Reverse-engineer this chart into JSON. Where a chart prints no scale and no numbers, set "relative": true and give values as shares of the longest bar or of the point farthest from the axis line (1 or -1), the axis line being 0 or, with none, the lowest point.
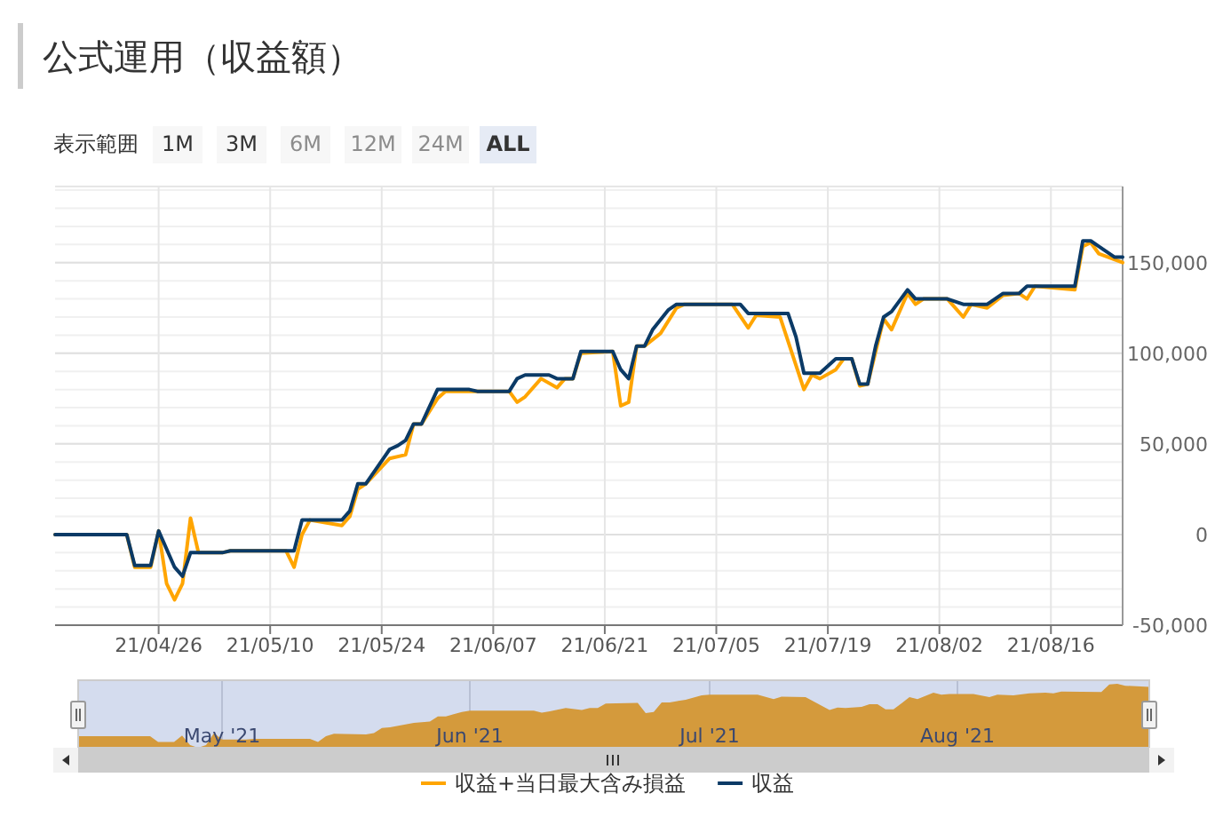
{
  "chart_data": [
    {
      "type": "line",
      "title": "公式運用（収益額）",
      "annotations": [
        "表示範囲",
        "1M",
        "3M",
        "6M",
        "12M",
        "24M",
        "ALL"
      ],
      "x": [
        "2021-04-13",
        "2021-04-22",
        "2021-04-23",
        "2021-04-25",
        "2021-04-26",
        "2021-04-28",
        "2021-04-29",
        "2021-04-30",
        "2021-05-04",
        "2021-05-05",
        "2021-05-13",
        "2021-05-14",
        "2021-05-19",
        "2021-05-20",
        "2021-05-21",
        "2021-05-22",
        "2021-05-25",
        "2021-05-26",
        "2021-05-27",
        "2021-05-28",
        "2021-05-29",
        "2021-05-31",
        "2021-06-04",
        "2021-06-05",
        "2021-06-09",
        "2021-06-10",
        "2021-06-11",
        "2021-06-14",
        "2021-06-15",
        "2021-06-17",
        "2021-06-18",
        "2021-06-22",
        "2021-06-23",
        "2021-06-24",
        "2021-06-25",
        "2021-06-26",
        "2021-06-27",
        "2021-06-29",
        "2021-06-30",
        "2021-07-08",
        "2021-07-09",
        "2021-07-14",
        "2021-07-15",
        "2021-07-16",
        "2021-07-18",
        "2021-07-20",
        "2021-07-22",
        "2021-07-23",
        "2021-07-24",
        "2021-07-25",
        "2021-07-26",
        "2021-07-27",
        "2021-07-29",
        "2021-07-30",
        "2021-08-03",
        "2021-08-05",
        "2021-08-08",
        "2021-08-10",
        "2021-08-12",
        "2021-08-13",
        "2021-08-19",
        "2021-08-20",
        "2021-08-21",
        "2021-08-22",
        "2021-08-24",
        "2021-08-25"
      ],
      "series": [
        {
          "name": "収益+当日最大含み損益",
          "color": "#ffa500",
          "x": [
            "2021-04-13",
            "2021-04-22",
            "2021-04-23",
            "2021-04-25",
            "2021-04-26",
            "2021-04-27",
            "2021-04-28",
            "2021-04-29",
            "2021-04-30",
            "2021-05-01",
            "2021-05-04",
            "2021-05-05",
            "2021-05-12",
            "2021-05-13",
            "2021-05-14",
            "2021-05-15",
            "2021-05-19",
            "2021-05-20",
            "2021-05-21",
            "2021-05-22",
            "2021-05-25",
            "2021-05-27",
            "2021-05-28",
            "2021-05-29",
            "2021-05-31",
            "2021-06-01",
            "2021-06-09",
            "2021-06-10",
            "2021-06-11",
            "2021-06-13",
            "2021-06-15",
            "2021-06-16",
            "2021-06-17",
            "2021-06-18",
            "2021-06-22",
            "2021-06-23",
            "2021-06-24",
            "2021-06-25",
            "2021-06-26",
            "2021-06-28",
            "2021-06-30",
            "2021-07-01",
            "2021-07-07",
            "2021-07-09",
            "2021-07-10",
            "2021-07-13",
            "2021-07-16",
            "2021-07-17",
            "2021-07-18",
            "2021-07-20",
            "2021-07-21",
            "2021-07-22",
            "2021-07-23",
            "2021-07-24",
            "2021-07-26",
            "2021-07-27",
            "2021-07-29",
            "2021-07-30",
            "2021-07-31",
            "2021-08-03",
            "2021-08-05",
            "2021-08-06",
            "2021-08-08",
            "2021-08-10",
            "2021-08-12",
            "2021-08-13",
            "2021-08-14",
            "2021-08-19",
            "2021-08-20",
            "2021-08-21",
            "2021-08-22",
            "2021-08-25"
          ],
          "values": [
            0,
            0,
            -18000,
            -18000,
            2000,
            -27000,
            -36000,
            -27000,
            9000,
            -10000,
            -10000,
            -9000,
            -9000,
            -18000,
            0,
            8000,
            5000,
            10000,
            25000,
            28000,
            42000,
            44000,
            61000,
            61000,
            75000,
            79000,
            79000,
            73000,
            76000,
            86000,
            81000,
            86000,
            86000,
            100000,
            101000,
            71000,
            73000,
            104000,
            104000,
            111000,
            125000,
            127000,
            127000,
            114000,
            121000,
            120000,
            80000,
            88000,
            86000,
            91000,
            97000,
            97000,
            82000,
            83000,
            119000,
            113000,
            133000,
            127000,
            130000,
            130000,
            120000,
            127000,
            125000,
            132000,
            133000,
            130000,
            137000,
            135000,
            159000,
            161000,
            155000,
            150000
          ]
        },
        {
          "name": "収益",
          "color": "#0b3a66",
          "values": [
            0,
            0,
            -17000,
            -17000,
            2000,
            -18000,
            -23000,
            -10000,
            -10000,
            -9000,
            -9000,
            8000,
            8000,
            13000,
            28000,
            28000,
            47000,
            49000,
            52000,
            61000,
            61000,
            80000,
            80000,
            79000,
            79000,
            86000,
            88000,
            88000,
            86000,
            86000,
            101000,
            101000,
            91000,
            86000,
            104000,
            104000,
            113000,
            124000,
            127000,
            127000,
            122000,
            122000,
            109000,
            89000,
            89000,
            97000,
            97000,
            83000,
            83000,
            104000,
            120000,
            123000,
            135000,
            130000,
            130000,
            127000,
            127000,
            133000,
            133000,
            137000,
            137000,
            162000,
            162000,
            159000,
            153000,
            153000
          ]
        }
      ],
      "xlim": [
        "2021-04-13",
        "2021-08-25"
      ],
      "xticks": [
        {
          "value": "2021-04-26",
          "label": "21/04/26"
        },
        {
          "value": "2021-05-10",
          "label": "21/05/10"
        },
        {
          "value": "2021-05-24",
          "label": "21/05/24"
        },
        {
          "value": "2021-06-07",
          "label": "21/06/07"
        },
        {
          "value": "2021-06-21",
          "label": "21/06/21"
        },
        {
          "value": "2021-07-05",
          "label": "21/07/05"
        },
        {
          "value": "2021-07-19",
          "label": "21/07/19"
        },
        {
          "value": "2021-08-02",
          "label": "21/08/02"
        },
        {
          "value": "2021-08-16",
          "label": "21/08/16"
        }
      ],
      "ylim": [
        -50000,
        192000
      ],
      "yticks": [
        {
          "value": -50000,
          "label": "-50,000"
        },
        0,
        {
          "value": 50000,
          "label": "50,000"
        },
        {
          "value": 100000,
          "label": "100,000"
        },
        {
          "value": 150000,
          "label": "150,000"
        }
      ],
      "grid": true,
      "legend": "bottom",
      "line_style": "solid",
      "marker": "none"
    },
    {
      "type": "area",
      "relative": true,
      "color": "#d49a3c",
      "x": [
        "2021-04-13",
        "2021-04-22",
        "2021-04-23",
        "2021-04-25",
        "2021-04-26",
        "2021-04-27",
        "2021-04-28",
        "2021-04-29",
        "2021-04-30",
        "2021-05-01",
        "2021-05-04",
        "2021-05-05",
        "2021-05-12",
        "2021-05-13",
        "2021-05-14",
        "2021-05-15",
        "2021-05-19",
        "2021-05-20",
        "2021-05-21",
        "2021-05-22",
        "2021-05-25",
        "2021-05-27",
        "2021-05-28",
        "2021-05-29",
        "2021-05-31",
        "2021-06-01",
        "2021-06-09",
        "2021-06-10",
        "2021-06-11",
        "2021-06-13",
        "2021-06-15",
        "2021-06-16",
        "2021-06-17",
        "2021-06-18",
        "2021-06-22",
        "2021-06-23",
        "2021-06-24",
        "2021-06-25",
        "2021-06-26",
        "2021-06-28",
        "2021-06-30",
        "2021-07-01",
        "2021-07-07",
        "2021-07-09",
        "2021-07-10",
        "2021-07-13",
        "2021-07-16",
        "2021-07-17",
        "2021-07-18",
        "2021-07-20",
        "2021-07-21",
        "2021-07-22",
        "2021-07-23",
        "2021-07-24",
        "2021-07-26",
        "2021-07-27",
        "2021-07-29",
        "2021-07-30",
        "2021-07-31",
        "2021-08-03",
        "2021-08-05",
        "2021-08-06",
        "2021-08-08",
        "2021-08-10",
        "2021-08-12",
        "2021-08-13",
        "2021-08-14",
        "2021-08-19",
        "2021-08-20",
        "2021-08-21",
        "2021-08-22",
        "2021-08-25"
      ],
      "values": [
        0.18,
        0.18,
        0.09,
        0.09,
        0.19,
        0.04,
        0,
        0.04,
        0.23,
        0.13,
        0.13,
        0.14,
        0.14,
        0.09,
        0.18,
        0.22,
        0.21,
        0.23,
        0.31,
        0.32,
        0.39,
        0.41,
        0.49,
        0.49,
        0.56,
        0.58,
        0.58,
        0.55,
        0.57,
        0.62,
        0.59,
        0.62,
        0.62,
        0.69,
        0.7,
        0.54,
        0.56,
        0.71,
        0.71,
        0.75,
        0.82,
        0.83,
        0.83,
        0.76,
        0.8,
        0.79,
        0.59,
        0.63,
        0.62,
        0.64,
        0.68,
        0.68,
        0.6,
        0.6,
        0.79,
        0.76,
        0.86,
        0.83,
        0.84,
        0.84,
        0.79,
        0.83,
        0.82,
        0.85,
        0.86,
        0.85,
        0.88,
        0.87,
        0.99,
        1,
        0.97,
        0.95
      ],
      "xlim": [
        "2021-04-13",
        "2021-08-25"
      ],
      "xticks": [
        {
          "value": "2021-05-01",
          "label": "May '21"
        },
        {
          "value": "2021-06-01",
          "label": "Jun '21"
        },
        {
          "value": "2021-07-01",
          "label": "Jul '21"
        },
        {
          "value": "2021-08-01",
          "label": "Aug '21"
        }
      ],
      "grid": "x"
    }
  ]
}
